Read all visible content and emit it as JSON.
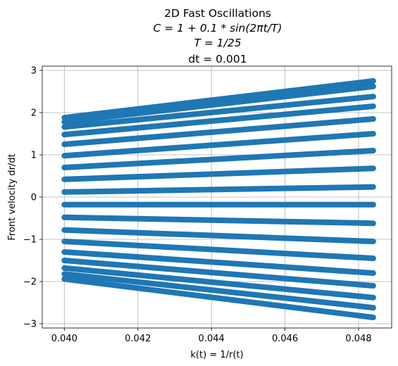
{
  "chart_data": {
    "type": "scatter",
    "title_lines": [
      "2D Fast Oscillations",
      "C = 1 + 0.1 * sin(2πt/T)",
      "T = 1/25",
      "dt = 0.001"
    ],
    "xlabel": "k(t) = 1/r(t)",
    "ylabel": "Front velocity dr/dt",
    "xlim": [
      0.0394,
      0.0489
    ],
    "ylim": [
      -3.1,
      3.1
    ],
    "xticks": [
      0.04,
      0.042,
      0.044,
      0.046,
      0.048
    ],
    "xtick_labels": [
      "0.040",
      "0.042",
      "0.044",
      "0.046",
      "0.048"
    ],
    "yticks": [
      -3,
      -2,
      -1,
      0,
      1,
      2,
      3
    ],
    "ytick_labels": [
      "−3",
      "−2",
      "−1",
      "0",
      "1",
      "2",
      "3"
    ],
    "grid": true,
    "legend": "none",
    "marker_color": "#1f77b4",
    "series": [
      {
        "x": [
          0.04,
          0.0484
        ],
        "y": [
          1.88,
          2.75
        ]
      },
      {
        "x": [
          0.04,
          0.0484
        ],
        "y": [
          1.78,
          2.62
        ]
      },
      {
        "x": [
          0.04,
          0.0484
        ],
        "y": [
          1.66,
          2.38
        ]
      },
      {
        "x": [
          0.04,
          0.0484
        ],
        "y": [
          1.48,
          2.15
        ]
      },
      {
        "x": [
          0.04,
          0.0484
        ],
        "y": [
          1.25,
          1.85
        ]
      },
      {
        "x": [
          0.04,
          0.0484
        ],
        "y": [
          0.98,
          1.5
        ]
      },
      {
        "x": [
          0.04,
          0.0484
        ],
        "y": [
          0.7,
          1.1
        ]
      },
      {
        "x": [
          0.04,
          0.0484
        ],
        "y": [
          0.42,
          0.68
        ]
      },
      {
        "x": [
          0.04,
          0.0484
        ],
        "y": [
          0.12,
          0.24
        ]
      },
      {
        "x": [
          0.04,
          0.0484
        ],
        "y": [
          -0.18,
          -0.18
        ]
      },
      {
        "x": [
          0.04,
          0.0484
        ],
        "y": [
          -0.48,
          -0.62
        ]
      },
      {
        "x": [
          0.04,
          0.0484
        ],
        "y": [
          -0.78,
          -1.05
        ]
      },
      {
        "x": [
          0.04,
          0.0484
        ],
        "y": [
          -1.05,
          -1.45
        ]
      },
      {
        "x": [
          0.04,
          0.0484
        ],
        "y": [
          -1.3,
          -1.8
        ]
      },
      {
        "x": [
          0.04,
          0.0484
        ],
        "y": [
          -1.5,
          -2.1
        ]
      },
      {
        "x": [
          0.04,
          0.0484
        ],
        "y": [
          -1.68,
          -2.38
        ]
      },
      {
        "x": [
          0.04,
          0.0484
        ],
        "y": [
          -1.82,
          -2.62
        ]
      },
      {
        "x": [
          0.04,
          0.0484
        ],
        "y": [
          -1.94,
          -2.85
        ]
      }
    ]
  }
}
